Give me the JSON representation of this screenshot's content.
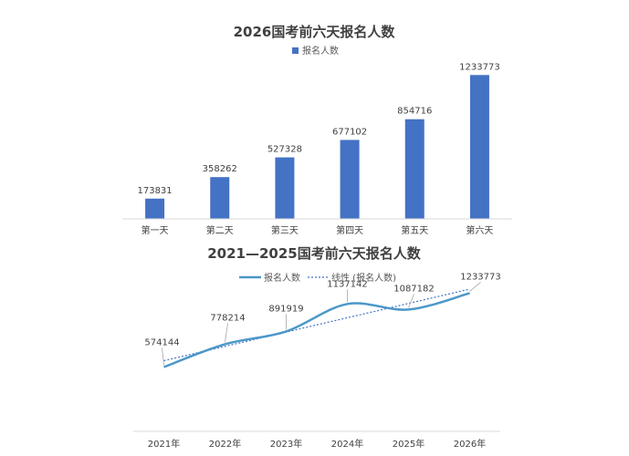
{
  "colors": {
    "bar": "#4472C4",
    "line": "#4B97C9",
    "trend": "#4472C4",
    "axis": "#D9D9D9",
    "leader": "#A6A6A6"
  },
  "chart_data": [
    {
      "type": "bar",
      "title": "2026国考前六天报名人数",
      "legend": [
        "报名人数"
      ],
      "legend_position": "top",
      "categories": [
        "第一天",
        "第二天",
        "第三天",
        "第四天",
        "第五天",
        "第六天"
      ],
      "series": [
        {
          "name": "报名人数",
          "values": [
            173831,
            358262,
            527328,
            677102,
            854716,
            1233773
          ]
        }
      ],
      "data_labels": [
        "173831",
        "358262",
        "527328",
        "677102",
        "854716",
        "1233773"
      ],
      "ylim": [
        0,
        1400000
      ],
      "grid": false
    },
    {
      "type": "line",
      "title": "2021—2025国考前六天报名人数",
      "legend": [
        "报名人数",
        "线性 (报名人数)"
      ],
      "legend_position": "top",
      "categories": [
        "2021年",
        "2022年",
        "2023年",
        "2024年",
        "2025年",
        "2026年"
      ],
      "series": [
        {
          "name": "报名人数",
          "values": [
            574144,
            778214,
            891919,
            1137142,
            1087182,
            1233773
          ],
          "smooth": true
        },
        {
          "name": "线性 (报名人数)",
          "trendline": "linear",
          "dashed": true
        }
      ],
      "data_labels": [
        "574144",
        "778214",
        "891919",
        "1137142",
        "1087182",
        "1233773"
      ],
      "ylim": [
        0,
        1400000
      ],
      "grid": false
    }
  ]
}
